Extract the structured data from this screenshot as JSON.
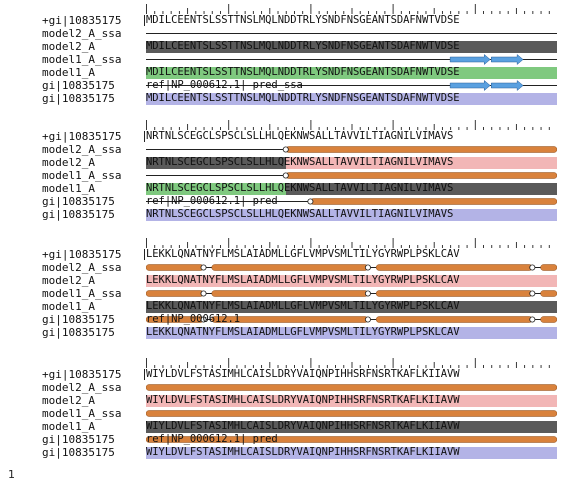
{
  "page_number": "1",
  "colors": {
    "dark": "#5a5a5a",
    "green": "#7fc97f",
    "pink": "#f2b6b6",
    "blue": "#b3b3e6",
    "orange": "#d9823c",
    "arrow": "#5aa0e0"
  },
  "blocks": [
    {
      "rows": [
        {
          "label": "+gi|10835175",
          "text": "MDILCEENTSLSSTTNSLMQLNDDTRLYSNDFNSGEANTSDAFNWTVDSE",
          "kind": "query"
        },
        {
          "label": "model2_A_ssa",
          "text": "",
          "kind": "line"
        },
        {
          "label": "model2_A",
          "text": "MDILCEENTSLSSTTNSLMQLNDDTRLYSNDFNSGEANTSDAFNWTVDSE",
          "kind": "seq",
          "segments": [
            {
              "from": 0,
              "to": 50,
              "color": "dark"
            }
          ]
        },
        {
          "label": "model1_A_ssa",
          "text": "",
          "kind": "ssa",
          "arrows": [
            [
              37,
              42
            ],
            [
              42,
              46
            ]
          ]
        },
        {
          "label": "model1_A",
          "text": "MDILCEENTSLSSTTNSLMQLNDDTRLYSNDFNSGEANTSDAFNWTVDSE",
          "kind": "seq",
          "segments": [
            {
              "from": 0,
              "to": 50,
              "color": "green"
            }
          ]
        },
        {
          "label": "gi|10835175",
          "text": "ref|NP_000612.1| pred_ssa",
          "kind": "ssa",
          "arrows": [
            [
              37,
              42
            ],
            [
              42,
              46
            ]
          ]
        },
        {
          "label": "gi|10835175",
          "text": "MDILCEENTSLSSTTNSLMQLNDDTRLYSNDFNSGEANTSDAFNWTVDSE",
          "kind": "seq",
          "segments": [
            {
              "from": 0,
              "to": 50,
              "color": "blue"
            }
          ]
        }
      ]
    },
    {
      "rows": [
        {
          "label": "+gi|10835175",
          "text": "NRTNLSCEGCLSPSCLSLLHLQEKNWSALLTAVVILTIAGNILVIMAVS",
          "kind": "query"
        },
        {
          "label": "model2_A_ssa",
          "text": "",
          "kind": "ssa",
          "helices": [
            [
              17,
              50
            ]
          ],
          "bubbles": [
            17
          ]
        },
        {
          "label": "model2_A",
          "text": "NRTNLSCEGCLSPSCLSLLHLQEKNWSALLTAVVILTIAGNILVIMAVS",
          "kind": "seq",
          "segments": [
            {
              "from": 0,
              "to": 17,
              "color": "dark"
            },
            {
              "from": 17,
              "to": 50,
              "color": "pink"
            }
          ]
        },
        {
          "label": "model1_A_ssa",
          "text": "",
          "kind": "ssa",
          "helices": [
            [
              17,
              50
            ]
          ],
          "bubbles": [
            17
          ]
        },
        {
          "label": "model1_A",
          "text": "NRTNLSCEGCLSPSCLSLLHLQEKNWSALLTAVVILTIAGNILVIMAVS",
          "kind": "seq",
          "segments": [
            {
              "from": 0,
              "to": 17,
              "color": "green"
            },
            {
              "from": 17,
              "to": 50,
              "color": "dark"
            }
          ]
        },
        {
          "label": "gi|10835175",
          "text": "ref|NP_000612.1| pred",
          "kind": "ssa",
          "helices": [
            [
              20,
              50
            ]
          ],
          "bubbles": [
            20
          ]
        },
        {
          "label": "gi|10835175",
          "text": "NRTNLSCEGCLSPSCLSLLHLQEKNWSALLTAVVILTIAGNILVIMAVS",
          "kind": "seq",
          "segments": [
            {
              "from": 0,
              "to": 50,
              "color": "blue"
            }
          ]
        }
      ]
    },
    {
      "rows": [
        {
          "label": "+gi|10835175",
          "text": "LEKKLQNATNYFLMSLAIADMLLGFLVMPVSMLTILYGYRWPLPSKLCAV",
          "kind": "query"
        },
        {
          "label": "model2_A_ssa",
          "text": "",
          "kind": "ssa",
          "helices": [
            [
              0,
              7
            ],
            [
              8,
              27
            ],
            [
              28,
              47
            ],
            [
              48,
              50
            ]
          ],
          "bubbles": [
            7,
            27,
            47
          ]
        },
        {
          "label": "model2_A",
          "text": "LEKKLQNATNYFLMSLAIADMLLGFLVMPVSMLTILYGYRWPLPSKLCAV",
          "kind": "seq",
          "segments": [
            {
              "from": 0,
              "to": 50,
              "color": "pink"
            }
          ]
        },
        {
          "label": "model1_A_ssa",
          "text": "",
          "kind": "ssa",
          "helices": [
            [
              0,
              7
            ],
            [
              8,
              27
            ],
            [
              28,
              47
            ],
            [
              48,
              50
            ]
          ],
          "bubbles": [
            7,
            27,
            47
          ]
        },
        {
          "label": "model1_A",
          "text": "LEKKLQNATNYFLMSLAIADMLLGFLVMPVSMLTILYGYRWPLPSKLCAV",
          "kind": "seq",
          "segments": [
            {
              "from": 0,
              "to": 50,
              "color": "dark"
            }
          ]
        },
        {
          "label": "gi|10835175",
          "text": "ref|NP_000612.1",
          "kind": "ssa",
          "helices": [
            [
              0,
              7
            ],
            [
              8,
              27
            ],
            [
              28,
              47
            ],
            [
              48,
              50
            ]
          ],
          "bubbles": [
            7,
            27,
            47
          ]
        },
        {
          "label": "gi|10835175",
          "text": "LEKKLQNATNYFLMSLAIADMLLGFLVMPVSMLTILYGYRWPLPSKLCAV",
          "kind": "seq",
          "segments": [
            {
              "from": 0,
              "to": 50,
              "color": "blue"
            }
          ]
        }
      ]
    },
    {
      "rows": [
        {
          "label": "+gi|10835175",
          "text": "WIYLDVLFSTASIMHLCAISLDRYVAIQNPIHHSRFNSRTKAFLKIIAVW",
          "kind": "query"
        },
        {
          "label": "model2_A_ssa",
          "text": "",
          "kind": "ssa",
          "helices": [
            [
              0,
              50
            ]
          ],
          "bubbles": []
        },
        {
          "label": "model2_A",
          "text": "WIYLDVLFSTASIMHLCAISLDRYVAIQNPIHHSRFNSRTKAFLKIIAVW",
          "kind": "seq",
          "segments": [
            {
              "from": 0,
              "to": 50,
              "color": "pink"
            }
          ]
        },
        {
          "label": "model1_A_ssa",
          "text": "",
          "kind": "ssa",
          "helices": [
            [
              0,
              50
            ]
          ],
          "bubbles": []
        },
        {
          "label": "model1_A",
          "text": "WIYLDVLFSTASIMHLCAISLDRYVAIQNPIHHSRFNSRTKAFLKIIAVW",
          "kind": "seq",
          "segments": [
            {
              "from": 0,
              "to": 50,
              "color": "dark"
            }
          ]
        },
        {
          "label": "gi|10835175",
          "text": "ref|NP_000612.1| pred",
          "kind": "ssa",
          "helices": [
            [
              0,
              50
            ]
          ],
          "bubbles": []
        },
        {
          "label": "gi|10835175",
          "text": "WIYLDVLFSTASIMHLCAISLDRYVAIQNPIHHSRFNSRTKAFLKIIAVW",
          "kind": "seq",
          "segments": [
            {
              "from": 0,
              "to": 50,
              "color": "blue"
            }
          ]
        }
      ]
    }
  ]
}
